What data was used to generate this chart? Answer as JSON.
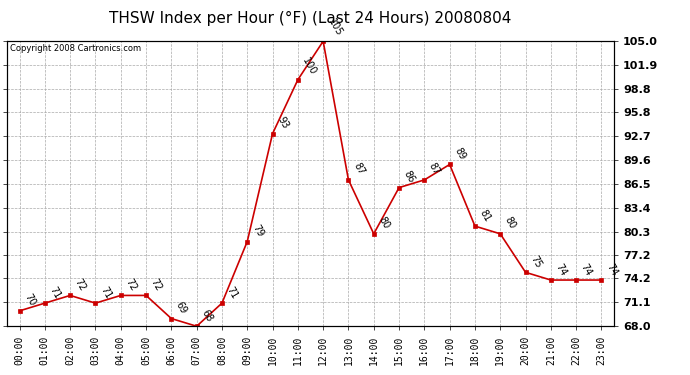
{
  "title": "THSW Index per Hour (°F) (Last 24 Hours) 20080804",
  "copyright": "Copyright 2008 Cartronics.com",
  "hours": [
    "00:00",
    "01:00",
    "02:00",
    "03:00",
    "04:00",
    "05:00",
    "06:00",
    "07:00",
    "08:00",
    "09:00",
    "10:00",
    "11:00",
    "12:00",
    "13:00",
    "14:00",
    "15:00",
    "16:00",
    "17:00",
    "18:00",
    "19:00",
    "20:00",
    "21:00",
    "22:00",
    "23:00"
  ],
  "values": [
    70,
    71,
    72,
    71,
    72,
    72,
    69,
    68,
    71,
    79,
    93,
    100,
    105,
    87,
    80,
    86,
    87,
    89,
    81,
    80,
    75,
    74,
    74,
    74
  ],
  "ylim": [
    68.0,
    105.0
  ],
  "yticks": [
    68.0,
    71.1,
    74.2,
    77.2,
    80.3,
    83.4,
    86.5,
    89.6,
    92.7,
    95.8,
    98.8,
    101.9,
    105.0
  ],
  "ytick_labels": [
    "68.0",
    "71.1",
    "74.2",
    "77.2",
    "80.3",
    "83.4",
    "86.5",
    "89.6",
    "92.7",
    "95.8",
    "98.8",
    "101.9",
    "105.0"
  ],
  "line_color": "#cc0000",
  "marker_color": "#cc0000",
  "bg_color": "#ffffff",
  "grid_color": "#aaaaaa",
  "title_fontsize": 11,
  "label_fontsize": 7,
  "annotation_fontsize": 7,
  "annotation_rotation": -60
}
